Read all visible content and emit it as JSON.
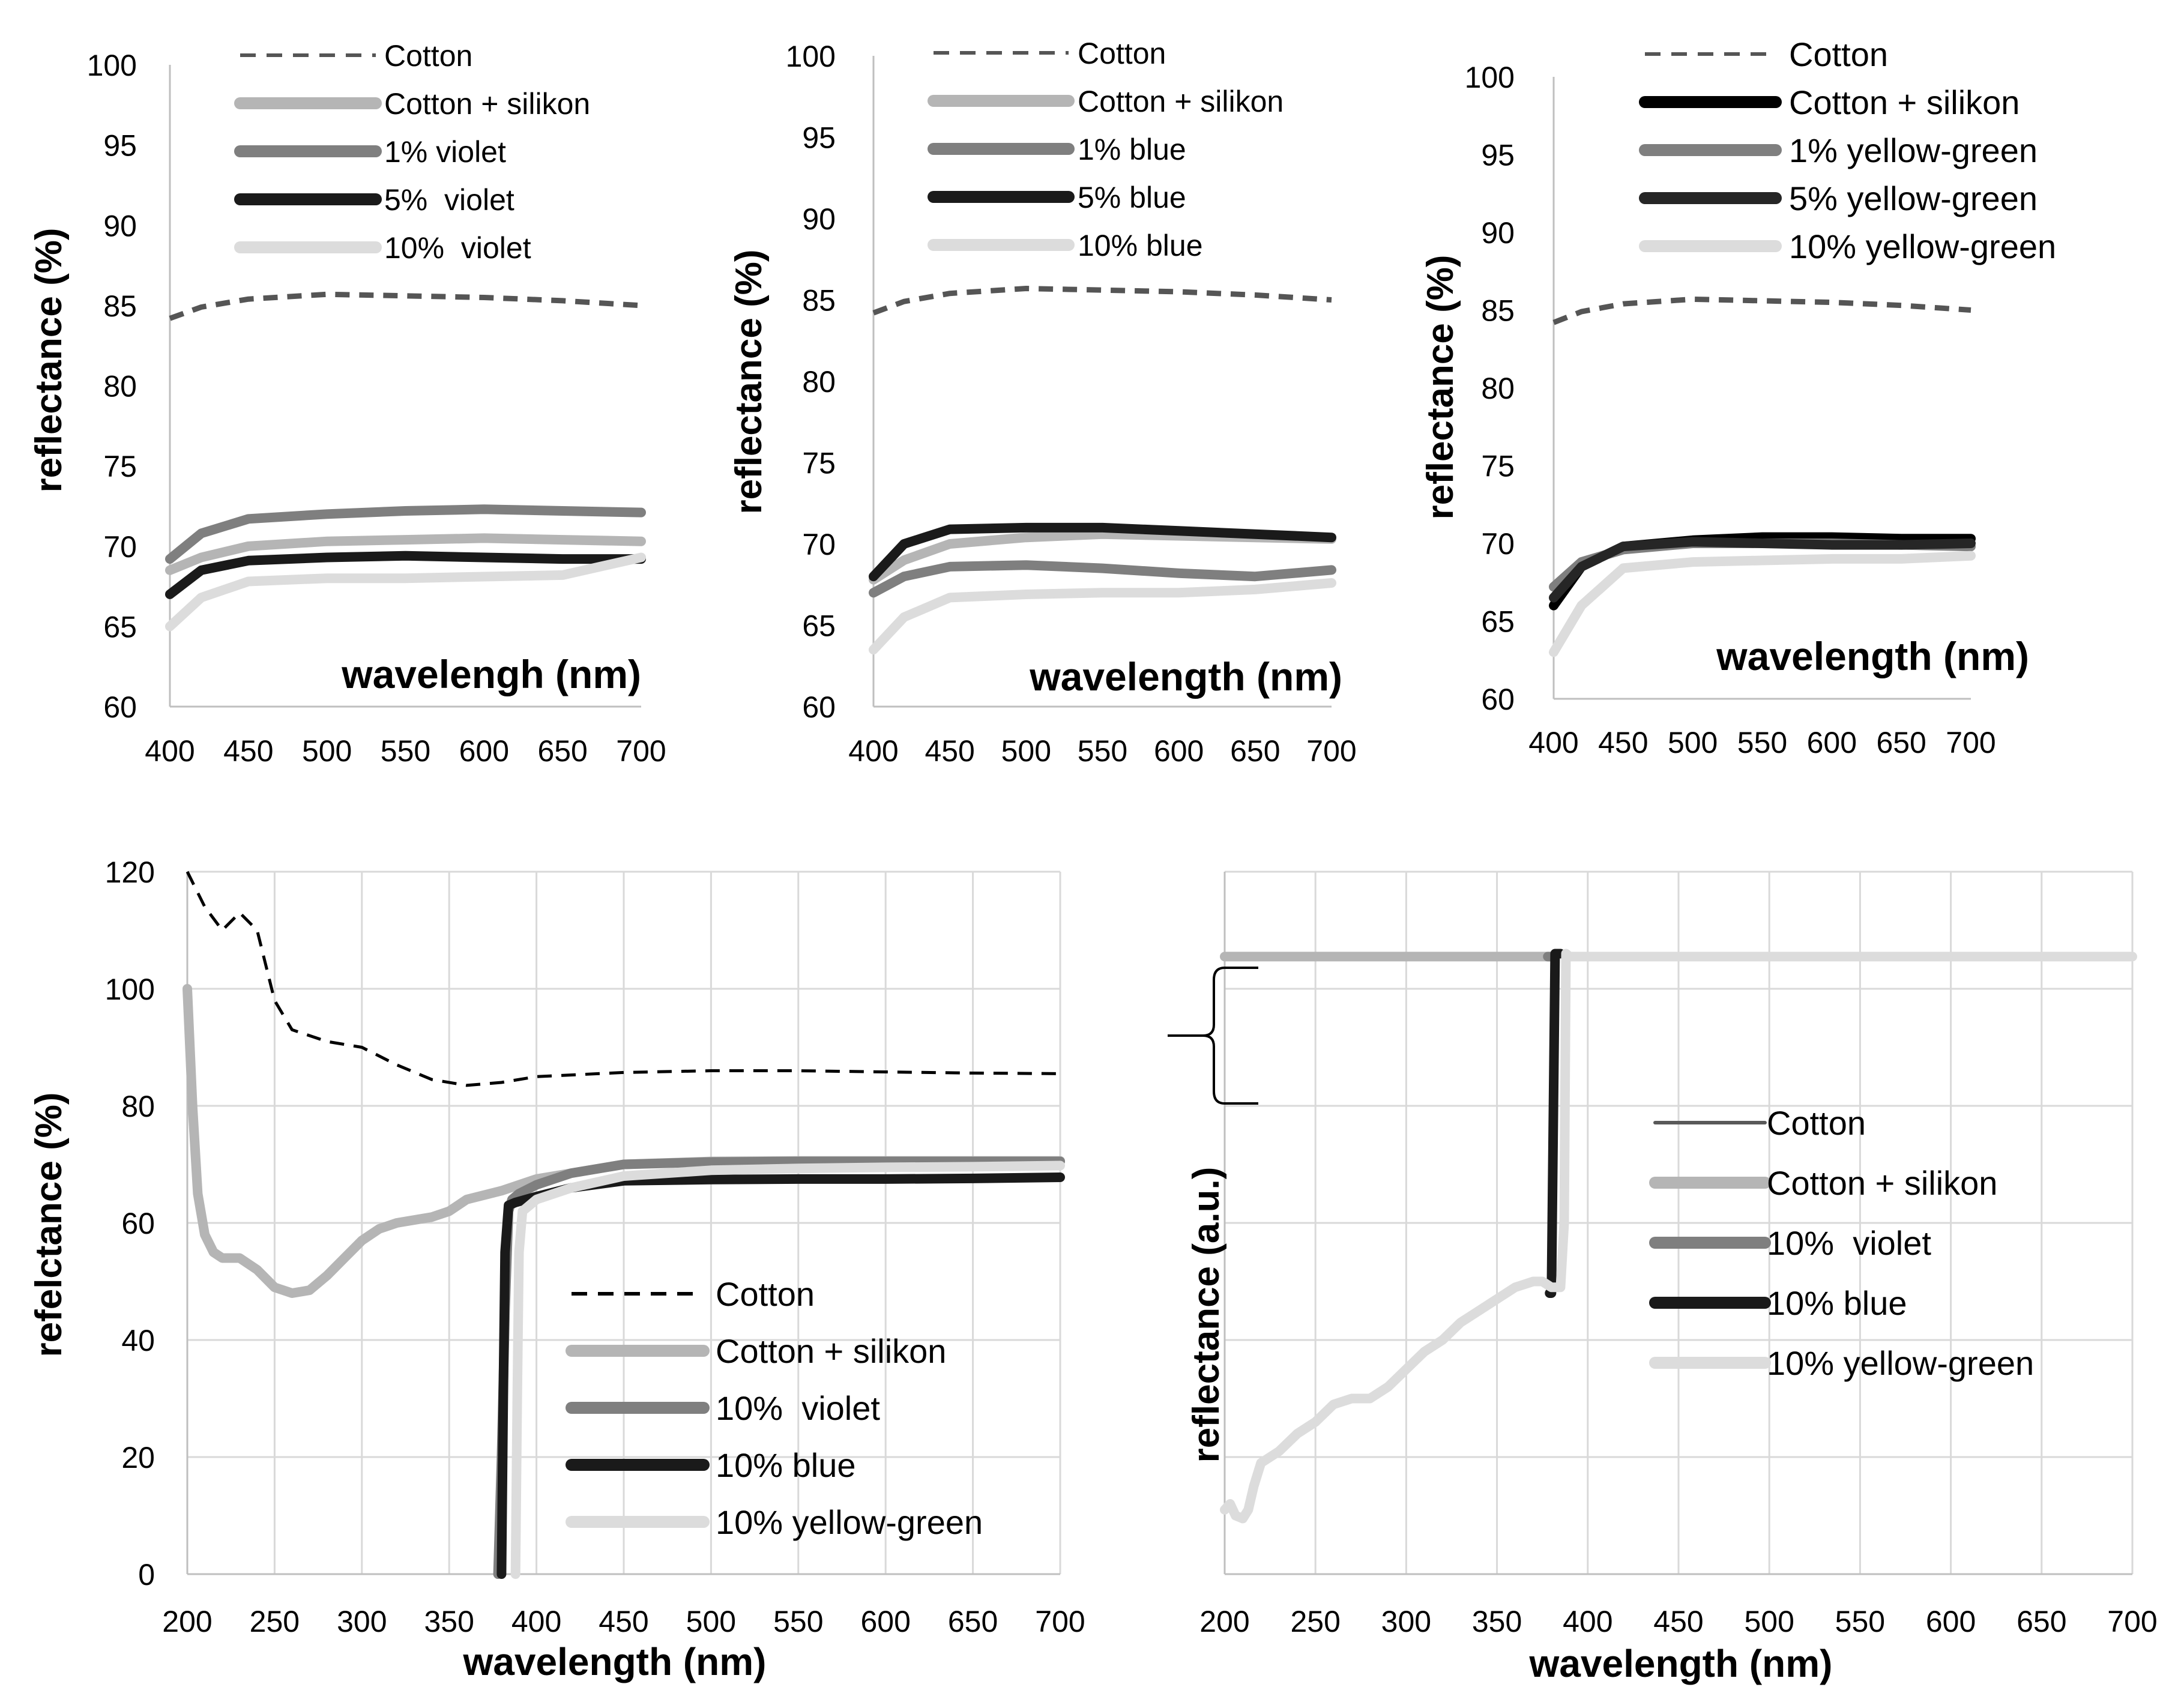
{
  "chart_data": [
    {
      "type": "line",
      "panel": "top-left",
      "title": "",
      "xlabel": "wavelengh (nm)",
      "ylabel": "reflectance (%)",
      "xlim": [
        400,
        700
      ],
      "ylim": [
        60,
        100
      ],
      "xticks": [
        "400",
        "450",
        "500",
        "550",
        "600",
        "650",
        "700"
      ],
      "yticks": [
        "60",
        "65",
        "70",
        "75",
        "80",
        "85",
        "90",
        "95",
        "100"
      ],
      "grid": false,
      "legend_position": "top-right",
      "series": [
        {
          "name": "Cotton",
          "color": "#555555",
          "dash": true,
          "x": [
            400,
            420,
            450,
            500,
            550,
            600,
            650,
            700
          ],
          "y": [
            84.2,
            84.9,
            85.4,
            85.7,
            85.6,
            85.5,
            85.3,
            85.0
          ]
        },
        {
          "name": "Cotton + silikon",
          "color": "#b5b5b5",
          "dash": false,
          "x": [
            400,
            420,
            450,
            500,
            550,
            600,
            650,
            700
          ],
          "y": [
            68.5,
            69.3,
            70.0,
            70.3,
            70.4,
            70.5,
            70.4,
            70.3
          ]
        },
        {
          "name": "1% violet",
          "color": "#7f7f7f",
          "dash": false,
          "x": [
            400,
            420,
            450,
            500,
            550,
            600,
            650,
            700
          ],
          "y": [
            69.2,
            70.8,
            71.7,
            72.0,
            72.2,
            72.3,
            72.2,
            72.1
          ]
        },
        {
          "name": "5%  violet",
          "color": "#1a1a1a",
          "dash": false,
          "x": [
            400,
            420,
            450,
            500,
            550,
            600,
            650,
            700
          ],
          "y": [
            67.0,
            68.5,
            69.1,
            69.3,
            69.4,
            69.3,
            69.2,
            69.2
          ]
        },
        {
          "name": "10%  violet",
          "color": "#dcdcdc",
          "dash": false,
          "x": [
            400,
            420,
            450,
            500,
            550,
            600,
            650,
            700
          ],
          "y": [
            65.0,
            66.8,
            67.8,
            68.0,
            68.0,
            68.1,
            68.2,
            69.3
          ]
        }
      ]
    },
    {
      "type": "line",
      "panel": "top-middle",
      "title": "",
      "xlabel": "wavelength (nm)",
      "ylabel": "reflectance (%)",
      "xlim": [
        400,
        700
      ],
      "ylim": [
        60,
        100
      ],
      "xticks": [
        "400",
        "450",
        "500",
        "550",
        "600",
        "650",
        "700"
      ],
      "yticks": [
        "60",
        "65",
        "70",
        "75",
        "80",
        "85",
        "90",
        "95",
        "100"
      ],
      "grid": false,
      "legend_position": "top-right",
      "series": [
        {
          "name": "Cotton",
          "color": "#555555",
          "dash": true,
          "x": [
            400,
            420,
            450,
            500,
            550,
            600,
            650,
            700
          ],
          "y": [
            84.2,
            84.9,
            85.4,
            85.7,
            85.6,
            85.5,
            85.3,
            85.0
          ]
        },
        {
          "name": "Cotton + silikon",
          "color": "#b5b5b5",
          "dash": false,
          "x": [
            400,
            420,
            450,
            500,
            550,
            600,
            650,
            700
          ],
          "y": [
            67.8,
            69.0,
            70.0,
            70.4,
            70.6,
            70.5,
            70.4,
            70.3
          ]
        },
        {
          "name": "1% blue",
          "color": "#7f7f7f",
          "dash": false,
          "x": [
            400,
            420,
            450,
            500,
            550,
            600,
            650,
            700
          ],
          "y": [
            67.0,
            68.0,
            68.6,
            68.7,
            68.5,
            68.2,
            68.0,
            68.4
          ]
        },
        {
          "name": "5% blue",
          "color": "#1a1a1a",
          "dash": false,
          "x": [
            400,
            420,
            450,
            500,
            550,
            600,
            650,
            700
          ],
          "y": [
            68.0,
            70.0,
            70.9,
            71.0,
            71.0,
            70.8,
            70.6,
            70.4
          ]
        },
        {
          "name": "10% blue",
          "color": "#dcdcdc",
          "dash": false,
          "x": [
            400,
            420,
            450,
            500,
            550,
            600,
            650,
            700
          ],
          "y": [
            63.5,
            65.5,
            66.7,
            66.9,
            67.0,
            67.0,
            67.2,
            67.6
          ]
        }
      ]
    },
    {
      "type": "line",
      "panel": "top-right",
      "title": "",
      "xlabel": "wavelength (nm)",
      "ylabel": "reflectance (%)",
      "xlim": [
        400,
        700
      ],
      "ylim": [
        60,
        100
      ],
      "xticks": [
        "400",
        "450",
        "500",
        "550",
        "600",
        "650",
        "700"
      ],
      "yticks": [
        "60",
        "65",
        "70",
        "75",
        "80",
        "85",
        "90",
        "95",
        "100"
      ],
      "grid": false,
      "legend_position": "top-right",
      "series": [
        {
          "name": "Cotton",
          "color": "#555555",
          "dash": true,
          "x": [
            400,
            420,
            450,
            500,
            550,
            600,
            650,
            700
          ],
          "y": [
            84.2,
            84.9,
            85.4,
            85.7,
            85.6,
            85.5,
            85.3,
            85.0
          ]
        },
        {
          "name": "Cotton + silikon",
          "color": "#000000",
          "dash": false,
          "x": [
            400,
            420,
            450,
            500,
            550,
            600,
            650,
            700
          ],
          "y": [
            66.0,
            68.5,
            69.8,
            70.2,
            70.4,
            70.4,
            70.3,
            70.3
          ]
        },
        {
          "name": "1% yellow-green",
          "color": "#7f7f7f",
          "dash": false,
          "x": [
            400,
            420,
            450,
            500,
            550,
            600,
            650,
            700
          ],
          "y": [
            67.2,
            68.8,
            69.6,
            70.0,
            70.0,
            70.0,
            69.9,
            69.8
          ]
        },
        {
          "name": "5% yellow-green",
          "color": "#262626",
          "dash": false,
          "x": [
            400,
            420,
            450,
            500,
            550,
            600,
            650,
            700
          ],
          "y": [
            66.5,
            68.5,
            69.8,
            70.1,
            70.0,
            69.9,
            69.9,
            70.0
          ]
        },
        {
          "name": "10% yellow-green",
          "color": "#dcdcdc",
          "dash": false,
          "x": [
            400,
            420,
            450,
            500,
            550,
            600,
            650,
            700
          ],
          "y": [
            63.0,
            66.0,
            68.4,
            68.8,
            68.9,
            69.0,
            69.0,
            69.2
          ]
        }
      ]
    },
    {
      "type": "line",
      "panel": "bottom-left",
      "title": "",
      "xlabel": "wavelength (nm)",
      "ylabel": "refelctance (%)",
      "xlim": [
        200,
        700
      ],
      "ylim": [
        0,
        120
      ],
      "xticks": [
        "200",
        "250",
        "300",
        "350",
        "400",
        "450",
        "500",
        "550",
        "600",
        "650",
        "700"
      ],
      "yticks": [
        "0",
        "20",
        "40",
        "60",
        "80",
        "100",
        "120"
      ],
      "grid": true,
      "legend_position": "bottom-right",
      "series": [
        {
          "name": "Cotton",
          "color": "#000000",
          "dash": true,
          "x": [
            200,
            210,
            220,
            230,
            240,
            250,
            260,
            280,
            300,
            320,
            340,
            360,
            380,
            400,
            450,
            500,
            550,
            600,
            650,
            700
          ],
          "y": [
            120,
            114,
            110,
            113,
            110,
            98,
            93,
            91,
            90,
            87,
            84.5,
            83.5,
            84,
            85,
            85.7,
            86,
            86,
            85.8,
            85.6,
            85.5
          ]
        },
        {
          "name": "Cotton + silikon",
          "color": "#b5b5b5",
          "dash": false,
          "x": [
            200,
            203,
            206,
            210,
            215,
            220,
            230,
            240,
            250,
            260,
            270,
            280,
            290,
            300,
            310,
            320,
            330,
            340,
            350,
            360,
            380,
            400,
            450,
            500,
            550,
            600,
            650,
            700
          ],
          "y": [
            100,
            80,
            65,
            58,
            55,
            54,
            54,
            52,
            49,
            48,
            48.5,
            51,
            54,
            57,
            59,
            60,
            60.5,
            61,
            62,
            64,
            65.5,
            67.5,
            70,
            70.5,
            70.6,
            70.6,
            70.6,
            70.6
          ]
        },
        {
          "name": "10%  violet",
          "color": "#7f7f7f",
          "dash": false,
          "x": [
            378,
            380,
            382,
            384,
            386,
            390,
            400,
            420,
            450,
            500,
            550,
            600,
            650,
            700
          ],
          "y": [
            0,
            20,
            45,
            62,
            64,
            65,
            66.5,
            68.5,
            70,
            70.4,
            70.5,
            70.5,
            70.5,
            70.5
          ]
        },
        {
          "name": "10% blue",
          "color": "#1a1a1a",
          "dash": false,
          "x": [
            380,
            381,
            382,
            384,
            388,
            400,
            420,
            450,
            500,
            550,
            600,
            650,
            700
          ],
          "y": [
            0,
            30,
            55,
            63,
            63.5,
            64.5,
            66,
            67.2,
            67.4,
            67.5,
            67.5,
            67.6,
            67.8
          ]
        },
        {
          "name": "10% yellow-green",
          "color": "#dcdcdc",
          "dash": false,
          "x": [
            388,
            389,
            390,
            392,
            396,
            400,
            420,
            450,
            500,
            550,
            600,
            650,
            700
          ],
          "y": [
            0,
            30,
            55,
            62,
            63,
            64,
            66,
            68,
            69,
            69.3,
            69.5,
            69.6,
            69.8
          ]
        }
      ]
    },
    {
      "type": "line",
      "panel": "bottom-right",
      "title": "",
      "xlabel": "wavelength (nm)",
      "ylabel": "reflectance (a.u.)",
      "xlim": [
        200,
        700
      ],
      "ylim": [
        0,
        12
      ],
      "xticks": [
        "200",
        "250",
        "300",
        "350",
        "400",
        "450",
        "500",
        "550",
        "600",
        "650",
        "700"
      ],
      "yticks": [],
      "grid": true,
      "legend_position": "center-right",
      "series": [
        {
          "name": "Cotton",
          "color": "#595959",
          "dash": false,
          "x": [
            200,
            700
          ],
          "y": [
            10.55,
            10.55
          ]
        },
        {
          "name": "Cotton + silikon",
          "color": "#b5b5b5",
          "dash": false,
          "x": [
            200,
            382
          ],
          "y": [
            10.55,
            10.55
          ]
        },
        {
          "name": "10%  violet",
          "color": "#7f7f7f",
          "dash": false,
          "x": [
            378,
            382
          ],
          "y": [
            10.55,
            10.55
          ]
        },
        {
          "name": "10% blue",
          "color": "#1a1a1a",
          "dash": false,
          "x": [
            379,
            380,
            382,
            383,
            385
          ],
          "y": [
            4.8,
            4.8,
            10.6,
            10.6,
            10.6
          ]
        },
        {
          "name": "10% yellow-green",
          "color": "#dcdcdc",
          "dash": false,
          "x": [
            200,
            203,
            206,
            210,
            213,
            216,
            220,
            230,
            240,
            250,
            260,
            270,
            280,
            290,
            300,
            310,
            320,
            330,
            340,
            350,
            360,
            370,
            375,
            380,
            385,
            387,
            388,
            390,
            700
          ],
          "y": [
            1.1,
            1.2,
            1.0,
            0.95,
            1.1,
            1.5,
            1.9,
            2.1,
            2.4,
            2.6,
            2.9,
            3.0,
            3.0,
            3.2,
            3.5,
            3.8,
            4.0,
            4.3,
            4.5,
            4.7,
            4.9,
            5.0,
            5.0,
            4.9,
            4.9,
            6.0,
            10.6,
            10.55,
            10.55
          ]
        }
      ]
    }
  ]
}
